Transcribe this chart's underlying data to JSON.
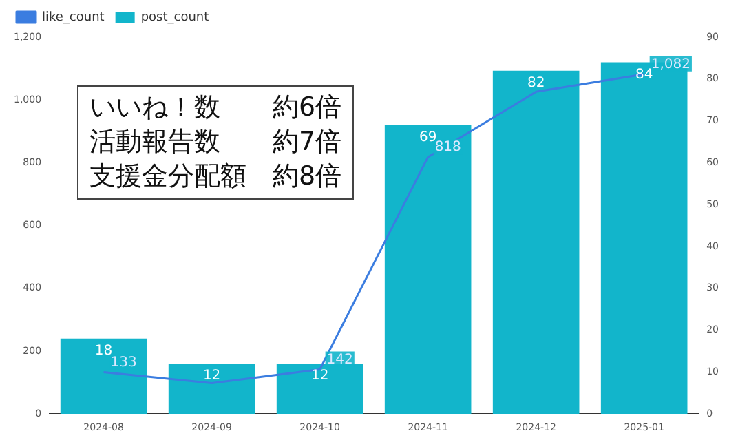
{
  "chart_data": {
    "type": "bar",
    "categories": [
      "2024-08",
      "2024-09",
      "2024-10",
      "2024-11",
      "2024-12",
      "2025-01"
    ],
    "series": [
      {
        "name": "like_count",
        "type": "line",
        "color": "#3b7de0",
        "values": [
          133,
          98,
          142,
          818,
          1026,
          1082
        ],
        "value_labels": [
          "133",
          null,
          "142",
          "818",
          null,
          "1,082"
        ]
      },
      {
        "name": "post_count",
        "axis": "y2",
        "color": "#12b5cb",
        "values": [
          18,
          12,
          12,
          69,
          82,
          84
        ],
        "value_labels": [
          "18",
          "12",
          "12",
          "69",
          "82",
          "84"
        ]
      }
    ],
    "ylim": [
      0,
      1200
    ],
    "yticks": [
      0,
      {
        "value": 200,
        "label": "200"
      },
      {
        "value": 400,
        "label": "400"
      },
      {
        "value": 600,
        "label": "600"
      },
      {
        "value": 800,
        "label": "800"
      },
      {
        "value": 1000,
        "label": "1,000"
      },
      {
        "value": 1200,
        "label": "1,200"
      }
    ],
    "y2lim": [
      0,
      90
    ],
    "y2ticks": [
      0,
      10,
      20,
      30,
      40,
      50,
      60,
      70,
      80,
      90
    ],
    "grid": false,
    "legend": "top left",
    "marker": "none",
    "annotations": [
      "いいね！数　　約6倍",
      "活動報告数　　約7倍",
      "支援金分配額　約8倍"
    ]
  }
}
